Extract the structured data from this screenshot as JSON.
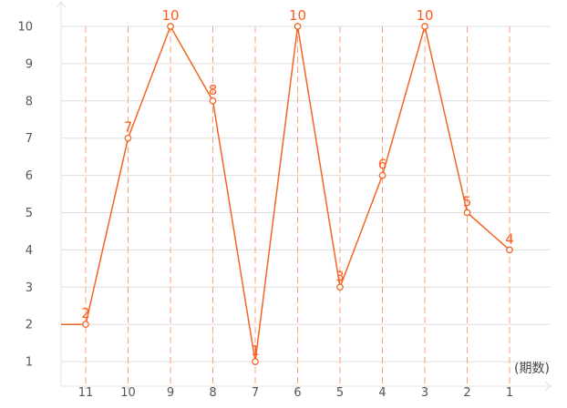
{
  "chart_data": {
    "type": "line",
    "title": "",
    "xlabel": "",
    "x_unit": "(期数)",
    "ylabel": "",
    "categories": [
      "11",
      "10",
      "9",
      "8",
      "7",
      "6",
      "5",
      "4",
      "3",
      "2",
      "1"
    ],
    "values": [
      2,
      7,
      10,
      8,
      1,
      10,
      3,
      6,
      10,
      5,
      4
    ],
    "value_labels": [
      "2",
      "7",
      "10",
      "8",
      "1",
      "10",
      "3",
      "6",
      "10",
      "5",
      "4"
    ],
    "y_ticks": [
      "1",
      "2",
      "3",
      "4",
      "5",
      "6",
      "7",
      "8",
      "9",
      "10"
    ],
    "ylim": [
      0,
      10
    ],
    "grid": true,
    "line_color": "#f26522",
    "dashed_guide_color": "#f5a57a",
    "label_color": "#ff5a1f",
    "grid_color": "#dddddd"
  }
}
